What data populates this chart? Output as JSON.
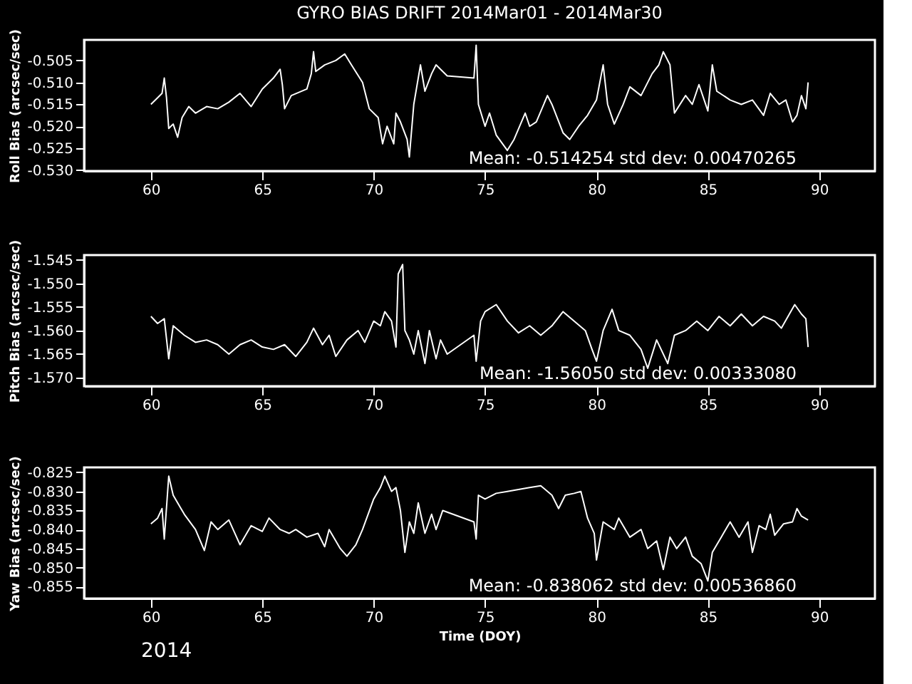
{
  "chart_data": [
    {
      "type": "line",
      "title": "GYRO BIAS DRIFT 2014Mar01 - 2014Mar30",
      "ylabel": "Roll Bias (arcsec/sec)",
      "xlim": [
        57,
        92.5
      ],
      "xticks": [
        60,
        65,
        70,
        75,
        80,
        85,
        90
      ],
      "ylim": [
        -0.5302,
        -0.5003
      ],
      "yticks": [
        {
          "value": -0.53,
          "label": "-0.530"
        },
        {
          "value": -0.525,
          "label": "-0.525"
        },
        {
          "value": -0.52,
          "label": "-0.520"
        },
        {
          "value": -0.515,
          "label": "-0.515"
        },
        {
          "value": -0.51,
          "label": "-0.510"
        },
        {
          "value": -0.505,
          "label": "-0.505"
        }
      ],
      "grid": false,
      "annotations": [
        "Mean: -0.514254 std dev: 0.00470265"
      ],
      "series": [
        {
          "color": "#ffffff",
          "x": [
            60.0,
            60.3,
            60.5,
            60.6,
            60.7,
            60.8,
            61.0,
            61.2,
            61.4,
            61.7,
            62.0,
            62.5,
            63.0,
            63.5,
            64.0,
            64.5,
            65.0,
            65.5,
            65.8,
            65.9,
            66.0,
            66.3,
            67.0,
            67.2,
            67.3,
            67.4,
            67.8,
            68.3,
            68.7,
            69.0,
            69.5,
            69.8,
            70.2,
            70.4,
            70.6,
            70.9,
            71.0,
            71.2,
            71.5,
            71.6,
            71.8,
            72.0,
            72.1,
            72.3,
            72.6,
            72.8,
            73.0,
            73.3,
            74.5,
            74.6,
            74.7,
            75.0,
            75.2,
            75.5,
            76.0,
            76.3,
            76.8,
            77.0,
            77.3,
            77.8,
            78.0,
            78.5,
            78.8,
            79.2,
            79.6,
            80.0,
            80.3,
            80.5,
            80.8,
            81.2,
            81.5,
            82.0,
            82.5,
            82.8,
            83.0,
            83.3,
            83.5,
            84.0,
            84.3,
            84.6,
            85.0,
            85.2,
            85.4,
            86.0,
            86.5,
            87.0,
            87.5,
            87.8,
            88.2,
            88.5,
            88.8,
            89.0,
            89.2,
            89.4,
            89.5
          ],
          "values": [
            -0.515,
            -0.5135,
            -0.5125,
            -0.509,
            -0.5135,
            -0.5205,
            -0.5195,
            -0.5225,
            -0.518,
            -0.5155,
            -0.517,
            -0.5155,
            -0.516,
            -0.5145,
            -0.5125,
            -0.5155,
            -0.5115,
            -0.509,
            -0.507,
            -0.5105,
            -0.516,
            -0.513,
            -0.5115,
            -0.508,
            -0.503,
            -0.5075,
            -0.506,
            -0.505,
            -0.5035,
            -0.506,
            -0.51,
            -0.516,
            -0.518,
            -0.524,
            -0.52,
            -0.524,
            -0.517,
            -0.519,
            -0.523,
            -0.527,
            -0.515,
            -0.509,
            -0.506,
            -0.512,
            -0.508,
            -0.506,
            -0.507,
            -0.5085,
            -0.509,
            -0.5015,
            -0.515,
            -0.52,
            -0.517,
            -0.522,
            -0.5255,
            -0.523,
            -0.517,
            -0.52,
            -0.519,
            -0.513,
            -0.515,
            -0.5215,
            -0.523,
            -0.52,
            -0.5175,
            -0.514,
            -0.506,
            -0.515,
            -0.5195,
            -0.515,
            -0.511,
            -0.513,
            -0.508,
            -0.506,
            -0.503,
            -0.506,
            -0.517,
            -0.513,
            -0.515,
            -0.5105,
            -0.5165,
            -0.506,
            -0.512,
            -0.514,
            -0.515,
            -0.514,
            -0.5175,
            -0.5125,
            -0.515,
            -0.514,
            -0.519,
            -0.5175,
            -0.513,
            -0.516,
            -0.51
          ]
        }
      ]
    },
    {
      "type": "line",
      "ylabel": "Pitch Bias (arcsec/sec)",
      "xlim": [
        57,
        92.5
      ],
      "xticks": [
        60,
        65,
        70,
        75,
        80,
        85,
        90
      ],
      "ylim": [
        -1.5718,
        -1.544
      ],
      "yticks": [
        {
          "value": -1.57,
          "label": "-1.570"
        },
        {
          "value": -1.565,
          "label": "-1.565"
        },
        {
          "value": -1.56,
          "label": "-1.560"
        },
        {
          "value": -1.555,
          "label": "-1.555"
        },
        {
          "value": -1.55,
          "label": "-1.550"
        },
        {
          "value": -1.545,
          "label": "-1.545"
        }
      ],
      "grid": false,
      "annotations": [
        "Mean: -1.56050 std dev: 0.00333080"
      ],
      "series": [
        {
          "color": "#ffffff",
          "x": [
            60.0,
            60.3,
            60.6,
            60.8,
            61.0,
            61.5,
            62.0,
            62.5,
            63.0,
            63.5,
            64.0,
            64.5,
            65.0,
            65.5,
            66.0,
            66.5,
            67.0,
            67.3,
            67.7,
            68.0,
            68.3,
            68.8,
            69.3,
            69.6,
            70.0,
            70.3,
            70.5,
            70.8,
            71.0,
            71.1,
            71.3,
            71.4,
            71.6,
            71.8,
            72.0,
            72.3,
            72.5,
            72.8,
            73.0,
            73.3,
            74.5,
            74.6,
            74.8,
            75.0,
            75.5,
            76.0,
            76.5,
            77.0,
            77.5,
            78.0,
            78.5,
            79.0,
            79.5,
            79.8,
            80.0,
            80.3,
            80.7,
            81.0,
            81.5,
            82.0,
            82.3,
            82.7,
            83.2,
            83.5,
            84.0,
            84.5,
            85.0,
            85.5,
            86.0,
            86.5,
            87.0,
            87.5,
            88.0,
            88.3,
            88.9,
            89.2,
            89.4,
            89.5
          ],
          "values": [
            -1.557,
            -1.5585,
            -1.5575,
            -1.566,
            -1.559,
            -1.561,
            -1.5625,
            -1.562,
            -1.563,
            -1.565,
            -1.563,
            -1.562,
            -1.5635,
            -1.564,
            -1.563,
            -1.5655,
            -1.5625,
            -1.5595,
            -1.563,
            -1.561,
            -1.5655,
            -1.562,
            -1.56,
            -1.5625,
            -1.558,
            -1.559,
            -1.556,
            -1.558,
            -1.5635,
            -1.548,
            -1.546,
            -1.56,
            -1.562,
            -1.565,
            -1.56,
            -1.567,
            -1.56,
            -1.566,
            -1.562,
            -1.565,
            -1.561,
            -1.5665,
            -1.558,
            -1.556,
            -1.5545,
            -1.558,
            -1.5605,
            -1.559,
            -1.561,
            -1.559,
            -1.556,
            -1.558,
            -1.56,
            -1.564,
            -1.5665,
            -1.56,
            -1.5555,
            -1.56,
            -1.561,
            -1.564,
            -1.568,
            -1.562,
            -1.567,
            -1.561,
            -1.56,
            -1.558,
            -1.56,
            -1.557,
            -1.559,
            -1.5565,
            -1.559,
            -1.557,
            -1.558,
            -1.5595,
            -1.5545,
            -1.5565,
            -1.5575,
            -1.5635
          ]
        }
      ]
    },
    {
      "type": "line",
      "ylabel": "Yaw Bias (arcsec/sec)",
      "xlabel": "Time (DOY)",
      "xlim": [
        57,
        92.5
      ],
      "xticks": [
        60,
        65,
        70,
        75,
        80,
        85,
        90
      ],
      "ylim": [
        -0.8581,
        -0.8237
      ],
      "yticks": [
        {
          "value": -0.855,
          "label": "-0.855"
        },
        {
          "value": -0.85,
          "label": "-0.850"
        },
        {
          "value": -0.845,
          "label": "-0.845"
        },
        {
          "value": -0.84,
          "label": "-0.840"
        },
        {
          "value": -0.835,
          "label": "-0.835"
        },
        {
          "value": -0.83,
          "label": "-0.830"
        },
        {
          "value": -0.825,
          "label": "-0.825"
        }
      ],
      "grid": false,
      "annotations": [
        "Mean: -0.838062 std dev: 0.00536860",
        "2014"
      ],
      "series": [
        {
          "color": "#ffffff",
          "x": [
            60.0,
            60.3,
            60.5,
            60.6,
            60.8,
            61.0,
            61.5,
            62.0,
            62.4,
            62.7,
            63.0,
            63.5,
            64.0,
            64.5,
            65.0,
            65.3,
            65.8,
            66.2,
            66.5,
            67.0,
            67.5,
            67.8,
            68.0,
            68.5,
            68.8,
            69.2,
            69.5,
            70.0,
            70.3,
            70.5,
            70.8,
            71.0,
            71.2,
            71.4,
            71.6,
            71.8,
            72.0,
            72.3,
            72.6,
            72.8,
            73.1,
            74.5,
            74.6,
            74.7,
            75.0,
            75.5,
            76.0,
            76.5,
            77.0,
            77.5,
            78.0,
            78.3,
            78.6,
            79.0,
            79.3,
            79.6,
            79.9,
            80.0,
            80.3,
            80.8,
            81.0,
            81.5,
            82.0,
            82.3,
            82.7,
            83.0,
            83.3,
            83.6,
            84.0,
            84.3,
            84.7,
            85.0,
            85.2,
            85.6,
            86.0,
            86.4,
            86.8,
            87.0,
            87.3,
            87.6,
            87.8,
            88.0,
            88.4,
            88.8,
            89.0,
            89.2,
            89.5
          ],
          "values": [
            -0.8385,
            -0.837,
            -0.8345,
            -0.8425,
            -0.826,
            -0.831,
            -0.836,
            -0.84,
            -0.8455,
            -0.838,
            -0.84,
            -0.8375,
            -0.844,
            -0.839,
            -0.8405,
            -0.837,
            -0.84,
            -0.841,
            -0.84,
            -0.842,
            -0.841,
            -0.8445,
            -0.84,
            -0.845,
            -0.847,
            -0.844,
            -0.84,
            -0.832,
            -0.829,
            -0.826,
            -0.83,
            -0.829,
            -0.835,
            -0.846,
            -0.838,
            -0.841,
            -0.833,
            -0.841,
            -0.836,
            -0.84,
            -0.835,
            -0.838,
            -0.8425,
            -0.831,
            -0.832,
            -0.8305,
            -0.83,
            -0.8295,
            -0.829,
            -0.8285,
            -0.831,
            -0.8345,
            -0.831,
            -0.8305,
            -0.83,
            -0.837,
            -0.841,
            -0.848,
            -0.838,
            -0.84,
            -0.837,
            -0.842,
            -0.84,
            -0.845,
            -0.843,
            -0.8505,
            -0.842,
            -0.845,
            -0.842,
            -0.847,
            -0.849,
            -0.8535,
            -0.846,
            -0.842,
            -0.838,
            -0.842,
            -0.838,
            -0.846,
            -0.839,
            -0.84,
            -0.836,
            -0.8415,
            -0.8385,
            -0.838,
            -0.8345,
            -0.8365,
            -0.8375
          ]
        }
      ]
    }
  ]
}
